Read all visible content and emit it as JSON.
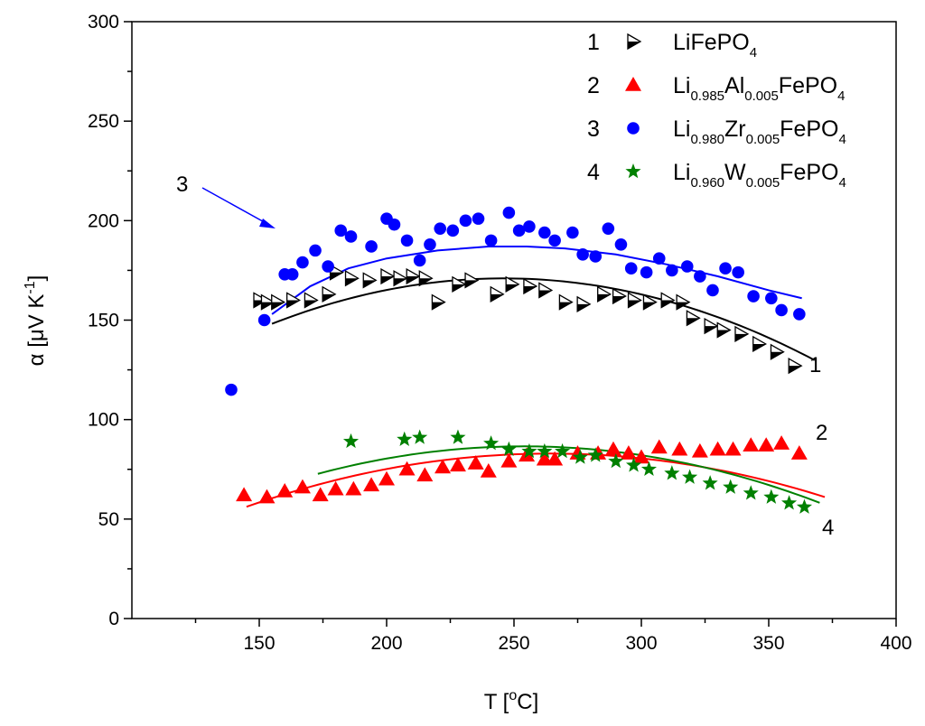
{
  "chart_data": {
    "type": "scatter",
    "title": "",
    "xlabel": {
      "main": "T [",
      "sup": "o",
      "rest": "C]"
    },
    "ylabel": {
      "main": "α [μV K",
      "sup": "-1",
      "rest": "]"
    },
    "xlim": [
      100,
      400
    ],
    "ylim": [
      0,
      300
    ],
    "x_ticks": [
      "150",
      "200",
      "250",
      "300",
      "350",
      "400"
    ],
    "y_ticks": [
      "0",
      "50",
      "100",
      "150",
      "200",
      "250",
      "300"
    ],
    "legend_position": "top-right",
    "series": [
      {
        "id": 1,
        "number": "1",
        "name": "LiFePO4",
        "label_parts": [
          [
            "LiFePO",
            "n"
          ],
          [
            "4",
            "sub"
          ]
        ],
        "marker": "right-triangle",
        "color": "#000000",
        "curve_label": "1",
        "x": [
          150,
          153,
          157,
          163,
          170,
          177,
          180,
          186,
          193,
          200,
          205,
          210,
          215,
          220,
          228,
          233,
          243,
          249,
          256,
          262,
          270,
          277,
          285,
          291,
          297,
          303,
          310,
          316,
          320,
          327,
          332,
          339,
          346,
          353,
          360
        ],
        "y": [
          160,
          159,
          159,
          160,
          160,
          163,
          174,
          171,
          170,
          172,
          171,
          172,
          171,
          159,
          168,
          170,
          163,
          168,
          167,
          165,
          159,
          158,
          163,
          162,
          160,
          159,
          160,
          159,
          151,
          147,
          145,
          143,
          138,
          134,
          127
        ],
        "fit": {
          "x_range": [
            155,
            368
          ],
          "coeffs": [
            4.0,
            1.3576,
            -0.0027596
          ]
        }
      },
      {
        "id": 2,
        "number": "2",
        "name": "Li0.985Al0.005FePO4",
        "label_parts": [
          [
            "Li",
            "n"
          ],
          [
            "0.985",
            "sub"
          ],
          [
            "Al",
            "n"
          ],
          [
            "0.005",
            "sub"
          ],
          [
            "FePO",
            "n"
          ],
          [
            "4",
            "sub"
          ]
        ],
        "marker": "up-triangle",
        "color": "#ff0000",
        "curve_label": "2",
        "x": [
          144,
          153,
          160,
          167,
          174,
          180,
          187,
          194,
          200,
          208,
          215,
          222,
          228,
          235,
          240,
          248,
          255,
          262,
          266,
          275,
          283,
          289,
          295,
          300,
          307,
          315,
          323,
          330,
          336,
          343,
          349,
          355,
          362
        ],
        "y": [
          62,
          61,
          64,
          66,
          62,
          65,
          65,
          67,
          70,
          75,
          72,
          76,
          77,
          78,
          74,
          79,
          82,
          80,
          80,
          83,
          83,
          85,
          83,
          81,
          86,
          85,
          84,
          85,
          85,
          87,
          87,
          88,
          83
        ],
        "fit": {
          "x_range": [
            145,
            372
          ],
          "coeffs": [
            -48.4,
            0.994,
            -0.001881
          ]
        }
      },
      {
        "id": 3,
        "number": "3",
        "name": "Li0.980Zr0.005FePO4",
        "label_parts": [
          [
            "Li",
            "n"
          ],
          [
            "0.980",
            "sub"
          ],
          [
            "Zr",
            "n"
          ],
          [
            "0.005",
            "sub"
          ],
          [
            "FePO",
            "n"
          ],
          [
            "4",
            "sub"
          ]
        ],
        "marker": "circle",
        "color": "#0000ff",
        "curve_label": "3",
        "x": [
          139,
          152,
          160,
          163,
          167,
          172,
          177,
          182,
          186,
          194,
          200,
          203,
          208,
          213,
          217,
          221,
          226,
          231,
          236,
          241,
          248,
          252,
          256,
          262,
          266,
          273,
          277,
          282,
          287,
          292,
          296,
          302,
          307,
          312,
          318,
          323,
          328,
          333,
          338,
          344,
          351,
          355,
          362
        ],
        "y": [
          115,
          150,
          173,
          173,
          179,
          185,
          177,
          195,
          192,
          187,
          201,
          198,
          190,
          180,
          188,
          196,
          195,
          200,
          201,
          190,
          204,
          195,
          197,
          194,
          190,
          194,
          183,
          182,
          196,
          188,
          176,
          174,
          181,
          175,
          177,
          172,
          165,
          176,
          174,
          162,
          161,
          155,
          153
        ]
      },
      {
        "id": 4,
        "number": "4",
        "name": "Li0.960W0.005FePO4",
        "label_parts": [
          [
            "Li",
            "n"
          ],
          [
            "0.960",
            "sub"
          ],
          [
            "W",
            "n"
          ],
          [
            "0.005",
            "sub"
          ],
          [
            "FePO",
            "n"
          ],
          [
            "4",
            "sub"
          ]
        ],
        "marker": "star",
        "color": "#008000",
        "curve_label": "4",
        "x": [
          186,
          207,
          213,
          228,
          241,
          248,
          256,
          262,
          269,
          276,
          282,
          290,
          297,
          303,
          312,
          319,
          327,
          335,
          343,
          351,
          358,
          364
        ],
        "y": [
          89,
          90,
          91,
          91,
          88,
          85,
          84,
          84,
          84,
          81,
          82,
          79,
          77,
          75,
          73,
          71,
          68,
          66,
          63,
          61,
          58,
          56
        ],
        "fit": {
          "x_range": [
            173,
            370
          ],
          "coeffs": [
            -49.4,
            1.0706,
            -0.0021077
          ]
        }
      }
    ],
    "annotation": {
      "text": "3",
      "arrow_from": [
        115,
        216
      ],
      "arrow_to": [
        180,
        196
      ]
    }
  }
}
